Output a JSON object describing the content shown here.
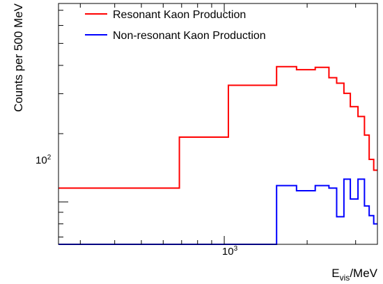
{
  "chart_data": {
    "type": "step",
    "title": "",
    "xlabel": {
      "main": "E",
      "sub": "vis",
      "unit": "/MeV"
    },
    "ylabel": "Counts per 500 MeV",
    "x_scale": "log",
    "y_scale": "log",
    "xlim": [
      250,
      3600
    ],
    "ylim": [
      65,
      750
    ],
    "x_tick_label": "10",
    "x_tick_label_exp": "3",
    "y_tick_label": "10",
    "y_tick_label_exp": "2",
    "legend": "top-left",
    "series": [
      {
        "name": "Resonant Kaon Production",
        "color": "#ff0000",
        "steps": [
          {
            "x0": 250,
            "x1": 687,
            "y": 115
          },
          {
            "x0": 687,
            "x1": 1035,
            "y": 193
          },
          {
            "x0": 1035,
            "x1": 1549,
            "y": 327
          },
          {
            "x0": 1549,
            "x1": 1830,
            "y": 395
          },
          {
            "x0": 1830,
            "x1": 2140,
            "y": 383
          },
          {
            "x0": 2140,
            "x1": 2400,
            "y": 392
          },
          {
            "x0": 2400,
            "x1": 2560,
            "y": 353
          },
          {
            "x0": 2560,
            "x1": 2720,
            "y": 334
          },
          {
            "x0": 2720,
            "x1": 2870,
            "y": 301
          },
          {
            "x0": 2870,
            "x1": 3060,
            "y": 263
          },
          {
            "x0": 3060,
            "x1": 3230,
            "y": 238
          },
          {
            "x0": 3230,
            "x1": 3360,
            "y": 197
          },
          {
            "x0": 3360,
            "x1": 3490,
            "y": 154
          },
          {
            "x0": 3490,
            "x1": 3600,
            "y": 138
          }
        ]
      },
      {
        "name": "Non-resonant Kaon Production",
        "color": "#0000ff",
        "steps": [
          {
            "x0": 250,
            "x1": 1549,
            "y": 65
          },
          {
            "x0": 1549,
            "x1": 1830,
            "y": 118
          },
          {
            "x0": 1830,
            "x1": 2140,
            "y": 112
          },
          {
            "x0": 2140,
            "x1": 2400,
            "y": 118
          },
          {
            "x0": 2400,
            "x1": 2560,
            "y": 115
          },
          {
            "x0": 2560,
            "x1": 2720,
            "y": 86
          },
          {
            "x0": 2720,
            "x1": 2870,
            "y": 126
          },
          {
            "x0": 2870,
            "x1": 3060,
            "y": 103
          },
          {
            "x0": 3060,
            "x1": 3230,
            "y": 126
          },
          {
            "x0": 3230,
            "x1": 3360,
            "y": 96
          },
          {
            "x0": 3360,
            "x1": 3490,
            "y": 87
          },
          {
            "x0": 3490,
            "x1": 3600,
            "y": 80
          }
        ]
      }
    ]
  }
}
